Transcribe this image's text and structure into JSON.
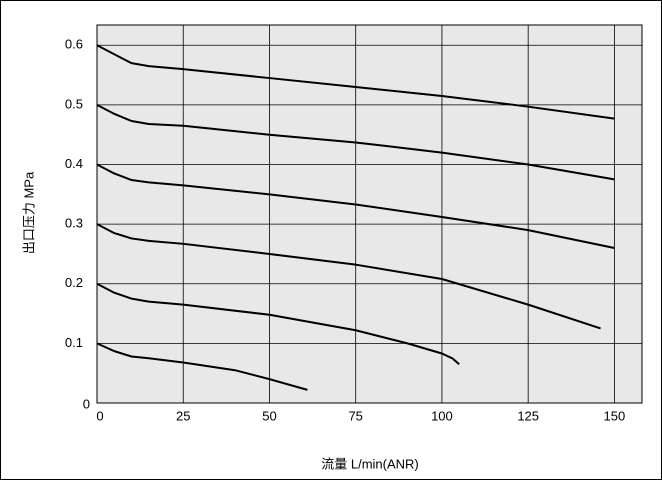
{
  "chart_data": {
    "type": "line",
    "xlabel": "流量 L/min(ANR)",
    "ylabel": "出口压力 MPa",
    "xlim": [
      0,
      158
    ],
    "ylim": [
      0,
      0.634
    ],
    "xticks": [
      0,
      25,
      50,
      75,
      100,
      125,
      150
    ],
    "yticks": [
      0,
      0.1,
      0.2,
      0.3,
      0.4,
      0.5,
      0.6
    ],
    "grid": true,
    "series": [
      {
        "color": "#000000",
        "x": [
          0,
          5,
          10,
          15,
          25,
          50,
          75,
          100,
          125,
          150
        ],
        "values": [
          0.6,
          0.585,
          0.57,
          0.565,
          0.56,
          0.545,
          0.53,
          0.515,
          0.497,
          0.477
        ]
      },
      {
        "color": "#000000",
        "x": [
          0,
          5,
          10,
          15,
          25,
          50,
          75,
          100,
          125,
          150
        ],
        "values": [
          0.5,
          0.485,
          0.473,
          0.468,
          0.465,
          0.45,
          0.437,
          0.42,
          0.4,
          0.375
        ]
      },
      {
        "color": "#000000",
        "x": [
          0,
          5,
          10,
          15,
          25,
          50,
          75,
          100,
          125,
          150
        ],
        "values": [
          0.4,
          0.385,
          0.374,
          0.37,
          0.365,
          0.35,
          0.333,
          0.312,
          0.29,
          0.26
        ]
      },
      {
        "color": "#000000",
        "x": [
          0,
          5,
          10,
          15,
          25,
          50,
          75,
          100,
          125,
          146
        ],
        "values": [
          0.3,
          0.285,
          0.276,
          0.272,
          0.267,
          0.25,
          0.232,
          0.208,
          0.165,
          0.125
        ]
      },
      {
        "color": "#000000",
        "x": [
          0,
          5,
          10,
          15,
          25,
          50,
          75,
          90,
          100,
          103,
          105
        ],
        "values": [
          0.2,
          0.185,
          0.175,
          0.17,
          0.165,
          0.148,
          0.122,
          0.1,
          0.083,
          0.075,
          0.065
        ]
      },
      {
        "color": "#000000",
        "x": [
          0,
          5,
          10,
          15,
          25,
          40,
          50,
          61
        ],
        "values": [
          0.1,
          0.087,
          0.078,
          0.075,
          0.068,
          0.055,
          0.04,
          0.022
        ]
      }
    ]
  }
}
